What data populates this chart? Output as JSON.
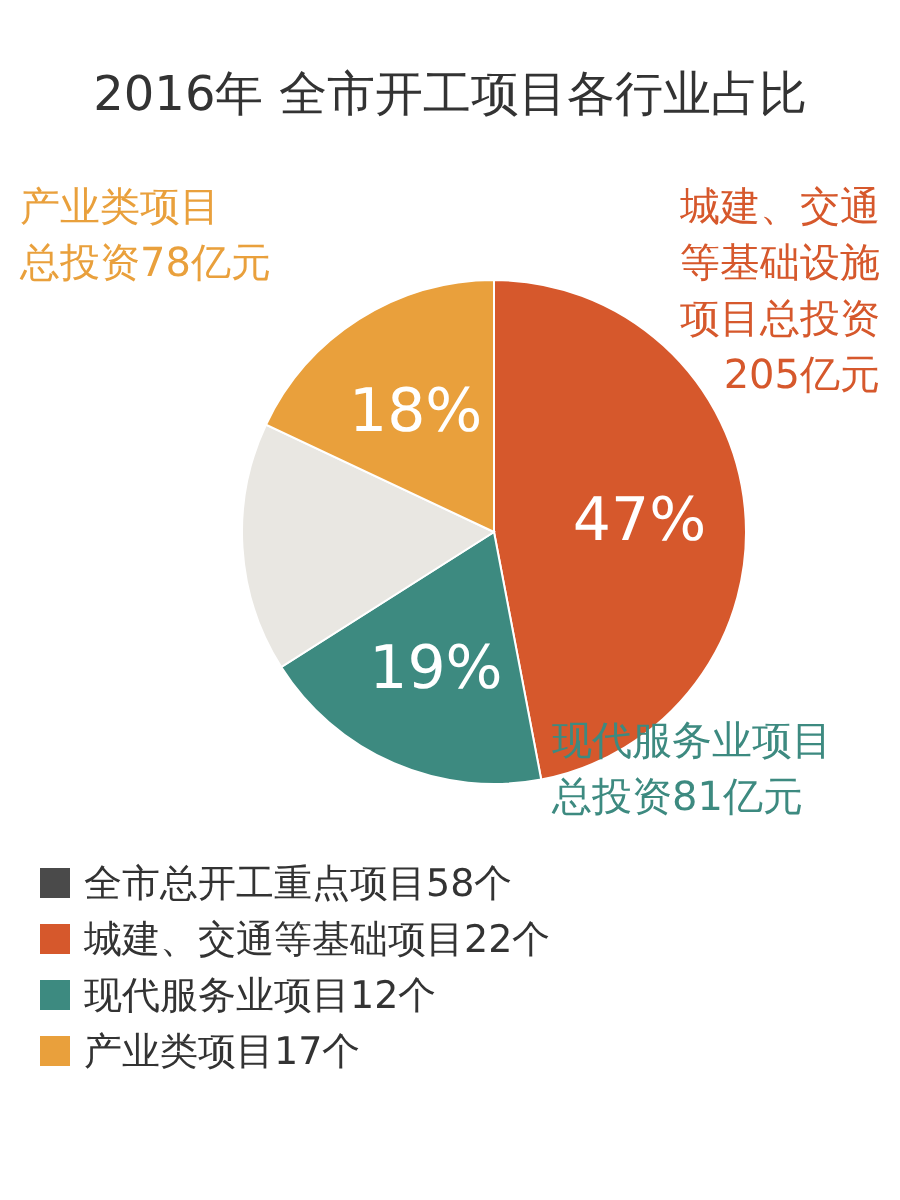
{
  "chart_data": {
    "type": "pie",
    "title": "2016年  全市开工项目各行业占比",
    "categories": [
      "城建、交通等基础设施项目总投资205亿元",
      "现代服务业项目总投资81亿元",
      null,
      "产业类项目总投资78亿元"
    ],
    "values": [
      47,
      19,
      16,
      18
    ],
    "colors": [
      "#d6582c",
      "#3d8a80",
      "#e9e7e2",
      "#e9a03c"
    ],
    "value_labels": [
      "47%",
      "19%",
      null,
      "18%"
    ],
    "annotations": [
      "全市总开工重点项目58个",
      "城建、交通等基础项目22个",
      "现代服务业项目12个",
      "产业类项目17个"
    ]
  }
}
